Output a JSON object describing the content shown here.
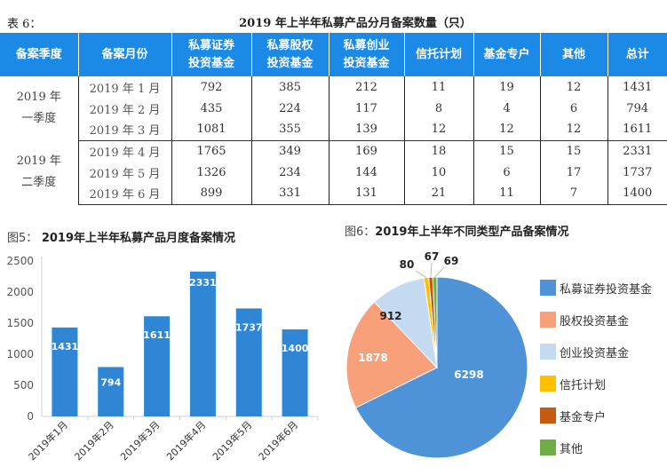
{
  "table": {
    "caption_label": "表 6：",
    "title": "2019 年上半年私募产品分月备案数量（只）",
    "headers": [
      [
        "备案季度"
      ],
      [
        "备案月份"
      ],
      [
        "私募证券",
        "投资基金"
      ],
      [
        "私募股权",
        "投资基金"
      ],
      [
        "私募创业",
        "投资基金"
      ],
      [
        "信托计划"
      ],
      [
        "基金专户"
      ],
      [
        "其他"
      ],
      [
        "总计"
      ]
    ],
    "quarters": [
      {
        "label": [
          "2019 年",
          "一季度"
        ],
        "rows": [
          [
            "2019 年 1 月",
            "792",
            "385",
            "212",
            "11",
            "19",
            "12",
            "1431"
          ],
          [
            "2019 年 2 月",
            "435",
            "224",
            "117",
            "8",
            "4",
            "6",
            "794"
          ],
          [
            "2019 年 3 月",
            "1081",
            "355",
            "139",
            "12",
            "12",
            "12",
            "1611"
          ]
        ]
      },
      {
        "label": [
          "2019 年",
          "二季度"
        ],
        "rows": [
          [
            "2019 年 4 月",
            "1765",
            "349",
            "169",
            "18",
            "15",
            "15",
            "2331"
          ],
          [
            "2019 年 5 月",
            "1326",
            "234",
            "144",
            "10",
            "6",
            "17",
            "1737"
          ],
          [
            "2019 年 6 月",
            "899",
            "331",
            "131",
            "21",
            "11",
            "7",
            "1400"
          ]
        ]
      }
    ]
  },
  "chart_data": [
    {
      "type": "bar",
      "fig_label": "图5：",
      "title": "2019年上半年私募产品月度备案情况",
      "categories": [
        "2019年1月",
        "2019年2月",
        "2019年3月",
        "2019年4月",
        "2019年5月",
        "2019年6月"
      ],
      "values": [
        1431,
        794,
        1611,
        2331,
        1737,
        1400
      ],
      "yticks": [
        0,
        500,
        1000,
        1500,
        2000,
        2500
      ],
      "ylim": [
        0,
        2500
      ],
      "color": "#2e86d4",
      "xlabel": "",
      "ylabel": "",
      "grid": false
    },
    {
      "type": "pie",
      "fig_label": "图6：",
      "title": "2019年上半年不同类型产品备案情况",
      "labels": [
        "私募证券投资基金",
        "股权投资基金",
        "创业投资基金",
        "信托计划",
        "基金专户",
        "其他"
      ],
      "values": [
        6298,
        1878,
        912,
        80,
        67,
        69
      ],
      "colors": [
        "#4e93d8",
        "#f8a07a",
        "#c3daf0",
        "#ffc000",
        "#c55a11",
        "#70ad47"
      ],
      "legend": "right"
    }
  ]
}
